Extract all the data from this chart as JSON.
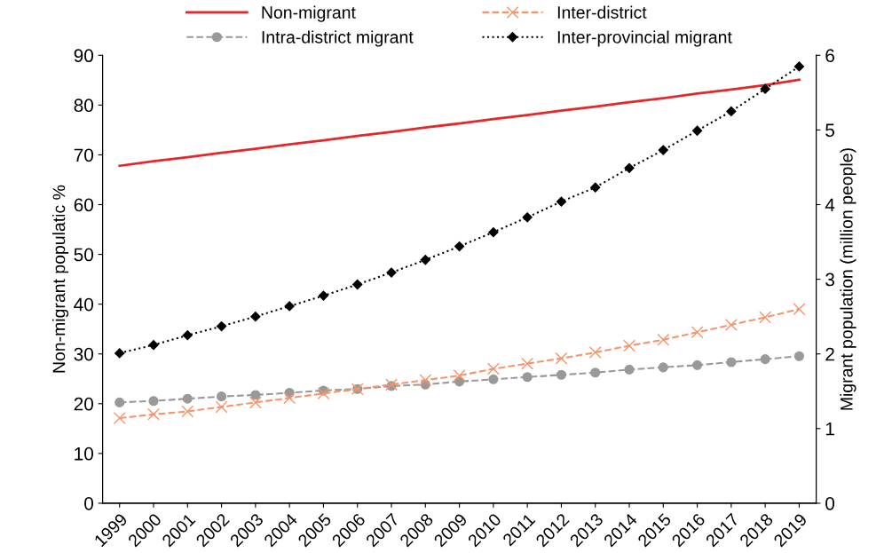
{
  "chart_data": {
    "type": "line",
    "ylabel": "Non-migrant populatic %",
    "y2label": "Migrant population (million people)",
    "categories": [
      "1999",
      "2000",
      "2001",
      "2002",
      "2003",
      "2004",
      "2005",
      "2006",
      "2007",
      "2008",
      "2009",
      "2010",
      "2011",
      "2012",
      "2013",
      "2014",
      "2015",
      "2016",
      "2017",
      "2018",
      "2019"
    ],
    "series": [
      {
        "name": "Non-migrant",
        "color": "#e8262a",
        "marker": "none",
        "line_style": "solid",
        "values": [
          67.8,
          68.7,
          69.5,
          70.4,
          71.2,
          72.1,
          72.9,
          73.8,
          74.6,
          75.5,
          76.3,
          77.2,
          78.0,
          78.9,
          79.7,
          80.6,
          81.4,
          82.3,
          83.1,
          84.0,
          85.1
        ]
      },
      {
        "name": "Intra-district migrant",
        "color": "#999999",
        "marker": "circle",
        "line_style": "dashed",
        "axis": "y2",
        "values": [
          1.35,
          1.37,
          1.4,
          1.43,
          1.45,
          1.48,
          1.51,
          1.53,
          1.57,
          1.59,
          1.63,
          1.66,
          1.69,
          1.72,
          1.75,
          1.79,
          1.82,
          1.85,
          1.89,
          1.93,
          1.97
        ]
      },
      {
        "name": "Inter-district",
        "color": "#f4956c",
        "marker": "cross",
        "line_style": "dashed",
        "axis": "y2",
        "values": [
          1.14,
          1.19,
          1.23,
          1.29,
          1.35,
          1.41,
          1.47,
          1.53,
          1.59,
          1.65,
          1.71,
          1.8,
          1.87,
          1.94,
          2.02,
          2.11,
          2.19,
          2.29,
          2.39,
          2.49,
          2.6
        ]
      },
      {
        "name": "Inter-provincial migrant",
        "color": "#000000",
        "marker": "diamond",
        "line_style": "dotted",
        "axis": "y2",
        "values": [
          2.01,
          2.12,
          2.25,
          2.37,
          2.5,
          2.64,
          2.78,
          2.93,
          3.09,
          3.26,
          3.44,
          3.63,
          3.83,
          4.04,
          4.23,
          4.49,
          4.73,
          4.99,
          5.25,
          5.55,
          5.85
        ]
      }
    ],
    "ylim": [
      0,
      90
    ],
    "yticks": [
      0,
      10,
      20,
      30,
      40,
      50,
      60,
      70,
      80,
      90
    ],
    "y2lim": [
      0,
      6
    ],
    "y2ticks": [
      0,
      1,
      2,
      3,
      4,
      5,
      6
    ],
    "grid": false,
    "legend": "top"
  }
}
